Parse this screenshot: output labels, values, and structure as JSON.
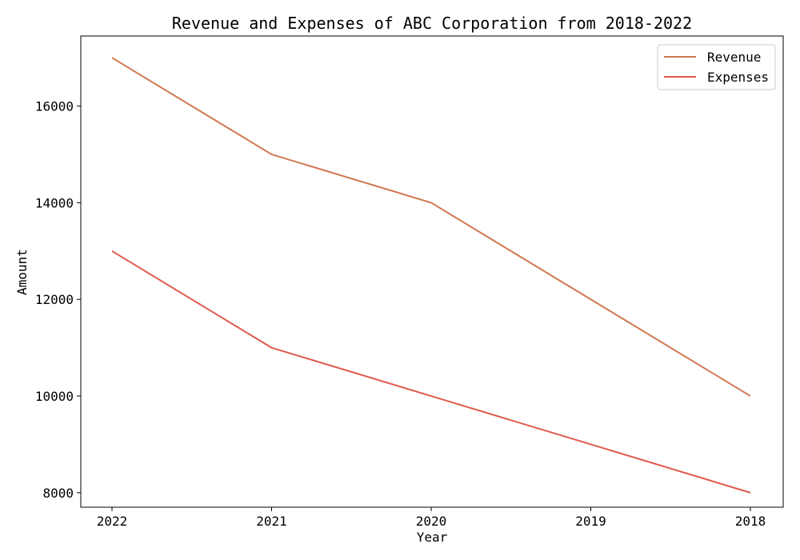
{
  "chart_data": {
    "type": "line",
    "title": "Revenue and Expenses of ABC Corporation from 2018-2022",
    "xlabel": "Year",
    "ylabel": "Amount",
    "categories": [
      "2022",
      "2021",
      "2020",
      "2019",
      "2018"
    ],
    "ylim": [
      7700,
      17450
    ],
    "yticks": [
      8000,
      10000,
      12000,
      14000,
      16000
    ],
    "legend_position": "top-right",
    "series": [
      {
        "name": "Revenue",
        "color": "#d07850",
        "values": [
          17000,
          15000,
          14000,
          12000,
          10000
        ]
      },
      {
        "name": "Expenses",
        "color": "#e05a4e",
        "values": [
          13000,
          11000,
          10000,
          9000,
          8000
        ]
      }
    ]
  }
}
